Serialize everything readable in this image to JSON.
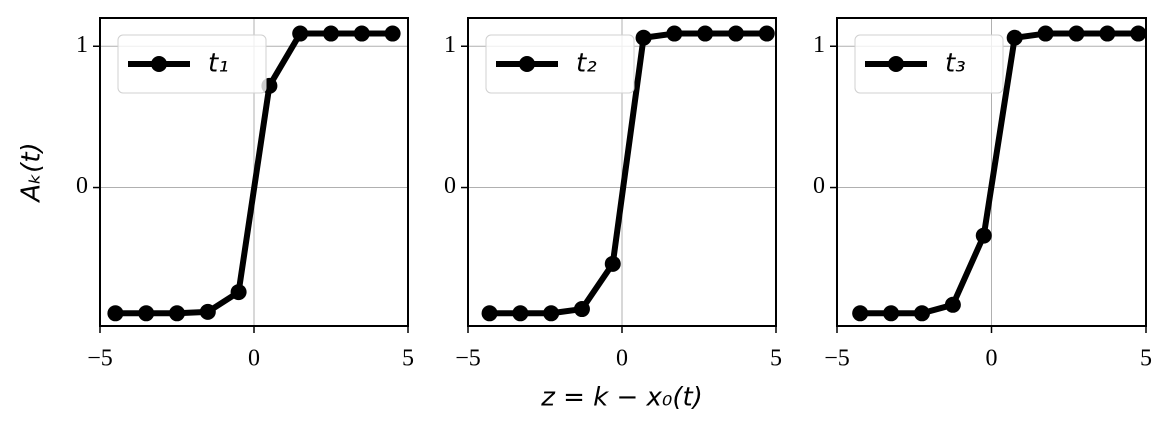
{
  "chart_data": [
    {
      "type": "line",
      "ylabel": "Aₖ(t)",
      "x": [
        -4.5,
        -3.5,
        -2.5,
        -1.5,
        -0.5,
        0.5,
        1.5,
        2.5,
        3.5,
        4.5
      ],
      "series": [
        {
          "name": "t₁",
          "color": "#000000",
          "values": [
            -0.89,
            -0.89,
            -0.89,
            -0.88,
            -0.74,
            0.72,
            1.09,
            1.09,
            1.09,
            1.09
          ]
        }
      ],
      "xlim": [
        -5,
        5
      ],
      "ylim": [
        -0.98,
        1.2
      ],
      "xticks": [
        {
          "value": -5,
          "label": "−5"
        },
        0,
        5
      ],
      "yticks": [
        0,
        1
      ],
      "grid": true,
      "legend": "upper left"
    },
    {
      "type": "line",
      "xlabel": "z = k − x₀(t)",
      "x": [
        -4.3,
        -3.3,
        -2.3,
        -1.3,
        -0.3,
        0.7,
        1.7,
        2.7,
        3.7,
        4.7
      ],
      "series": [
        {
          "name": "t₂",
          "color": "#000000",
          "values": [
            -0.89,
            -0.89,
            -0.89,
            -0.86,
            -0.54,
            1.06,
            1.09,
            1.09,
            1.09,
            1.09
          ]
        }
      ],
      "xlim": [
        -5,
        5
      ],
      "ylim": [
        -0.98,
        1.2
      ],
      "xticks": [
        {
          "value": -5,
          "label": "−5"
        },
        0,
        5
      ],
      "yticks": [
        0,
        1
      ],
      "grid": true,
      "legend": "upper left"
    },
    {
      "type": "line",
      "x": [
        -4.25,
        -3.25,
        -2.25,
        -1.25,
        -0.25,
        0.75,
        1.75,
        2.75,
        3.75,
        4.75
      ],
      "series": [
        {
          "name": "t₃",
          "color": "#000000",
          "values": [
            -0.89,
            -0.89,
            -0.89,
            -0.83,
            -0.34,
            1.06,
            1.09,
            1.09,
            1.09,
            1.09
          ]
        }
      ],
      "xlim": [
        -5,
        5
      ],
      "ylim": [
        -0.98,
        1.2
      ],
      "xticks": [
        {
          "value": -5,
          "label": "−5"
        },
        0,
        5
      ],
      "yticks": [
        0,
        1
      ],
      "grid": true,
      "legend": "upper left"
    }
  ]
}
